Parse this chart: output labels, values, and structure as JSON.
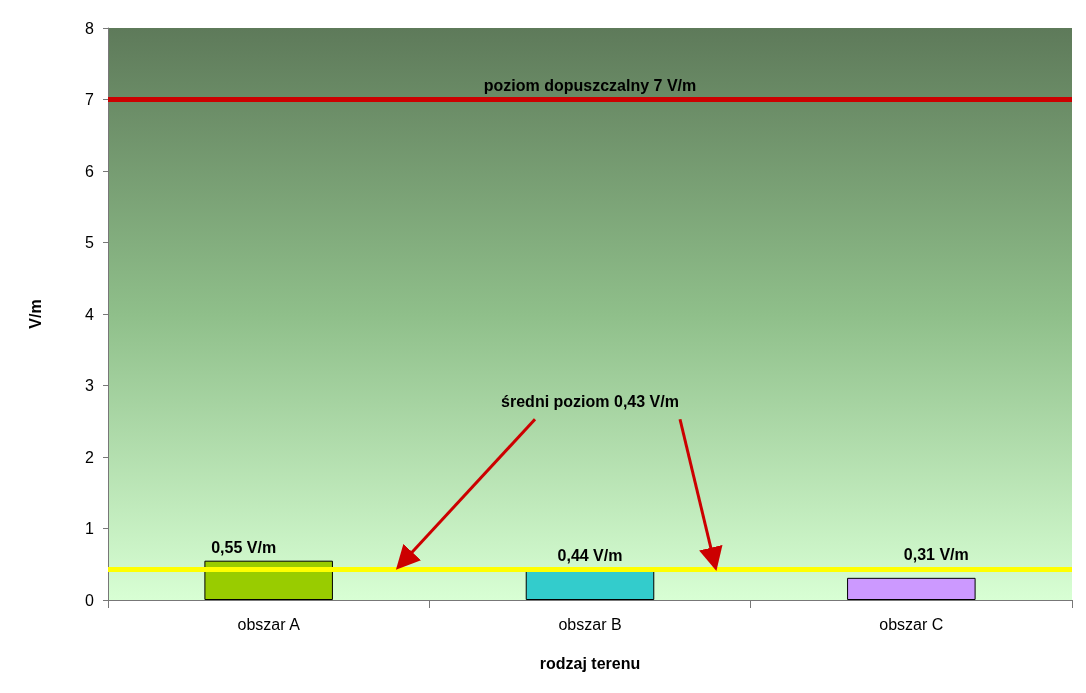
{
  "chart_data": {
    "type": "bar",
    "xlabel": "rodzaj terenu",
    "ylabel": "V/m",
    "categories": [
      "obszar A",
      "obszar B",
      "obszar C"
    ],
    "values": [
      0.55,
      0.44,
      0.31
    ],
    "colors": [
      "#99cc00",
      "#33cccc",
      "#cc99ff"
    ],
    "value_labels": [
      "0,55 V/m",
      "0,44 V/m",
      "0,31 V/m"
    ],
    "ylim": [
      0,
      8
    ],
    "yticks": [
      0,
      1,
      2,
      3,
      4,
      5,
      6,
      7,
      8
    ],
    "grid": false,
    "ref_lines": [
      {
        "axis": "y",
        "value": 7,
        "label": "poziom dopuszczalny 7 V/m",
        "color": "#cc0000"
      },
      {
        "axis": "y",
        "value": 0.43,
        "label": "średni poziom 0,43 V/m",
        "color": "#ffff00"
      }
    ]
  }
}
